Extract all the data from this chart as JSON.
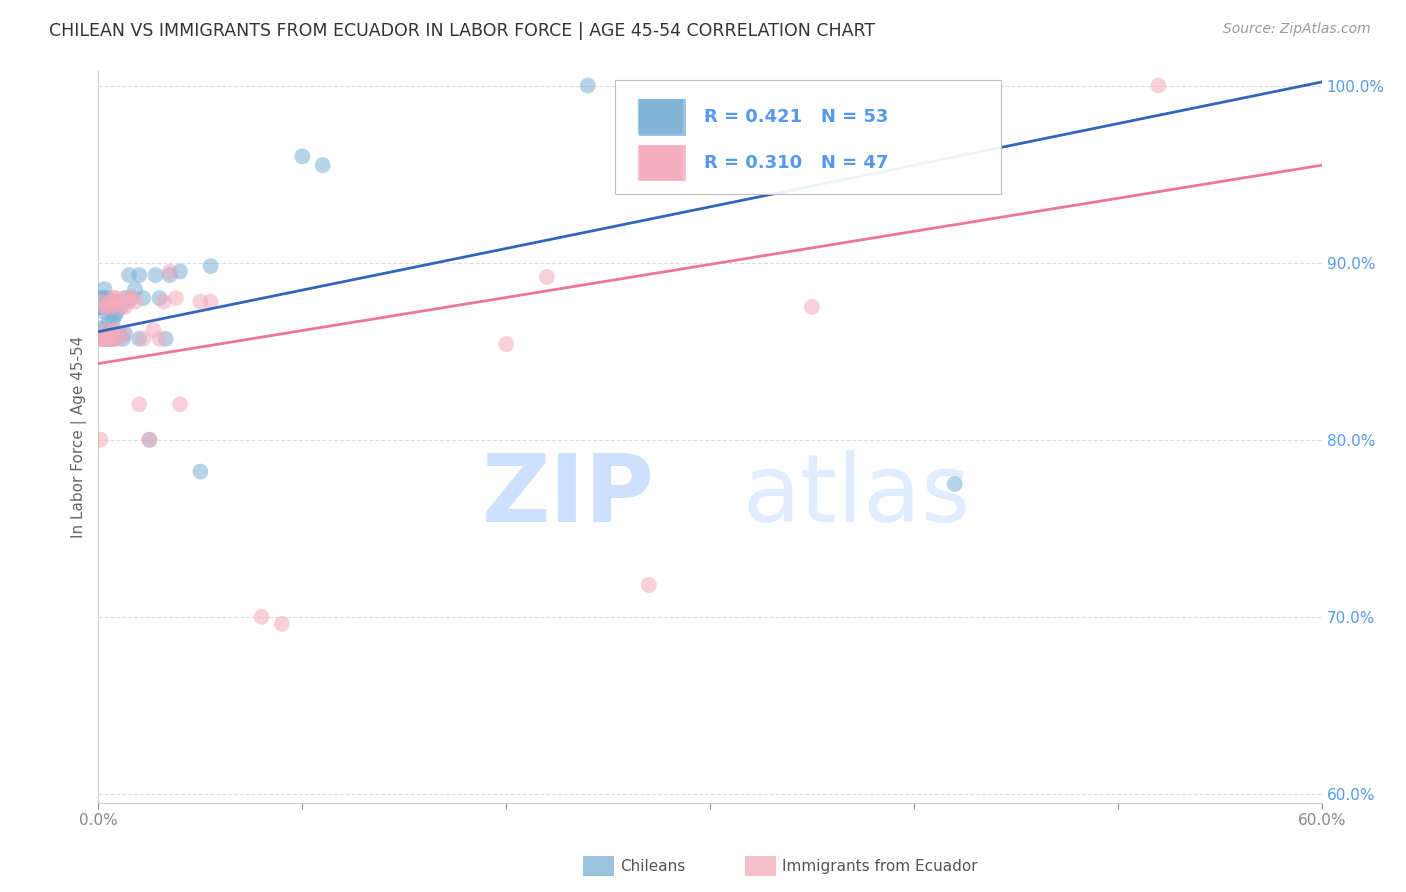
{
  "title": "CHILEAN VS IMMIGRANTS FROM ECUADOR IN LABOR FORCE | AGE 45-54 CORRELATION CHART",
  "source": "Source: ZipAtlas.com",
  "ylabel": "In Labor Force | Age 45-54",
  "blue_color": "#7BAFD4",
  "pink_color": "#F4AABC",
  "blue_line_color": "#3366BB",
  "pink_line_color": "#EE7799",
  "title_color": "#333333",
  "axis_label_color": "#666666",
  "right_tick_color": "#5599EE",
  "xmin": 0.0,
  "xmax": 0.6,
  "ymin": 0.595,
  "ymax": 1.008,
  "yticks": [
    0.6,
    0.7,
    0.8,
    0.9,
    1.0
  ],
  "xticks": [
    0.0,
    0.1,
    0.2,
    0.3,
    0.4,
    0.5,
    0.6
  ],
  "blue_x": [
    0.001,
    0.001,
    0.001,
    0.001,
    0.002,
    0.002,
    0.002,
    0.002,
    0.003,
    0.003,
    0.003,
    0.003,
    0.003,
    0.004,
    0.004,
    0.004,
    0.005,
    0.005,
    0.005,
    0.005,
    0.005,
    0.006,
    0.006,
    0.006,
    0.007,
    0.007,
    0.008,
    0.008,
    0.008,
    0.009,
    0.01,
    0.011,
    0.012,
    0.013,
    0.013,
    0.015,
    0.016,
    0.018,
    0.02,
    0.02,
    0.022,
    0.025,
    0.028,
    0.03,
    0.033,
    0.035,
    0.04,
    0.05,
    0.055,
    0.1,
    0.11,
    0.24,
    0.42
  ],
  "blue_y": [
    0.875,
    0.875,
    0.88,
    0.863,
    0.875,
    0.875,
    0.878,
    0.88,
    0.857,
    0.862,
    0.872,
    0.875,
    0.885,
    0.857,
    0.875,
    0.88,
    0.857,
    0.857,
    0.858,
    0.867,
    0.878,
    0.857,
    0.857,
    0.878,
    0.867,
    0.878,
    0.857,
    0.87,
    0.878,
    0.872,
    0.86,
    0.875,
    0.857,
    0.86,
    0.88,
    0.893,
    0.88,
    0.885,
    0.857,
    0.893,
    0.88,
    0.8,
    0.893,
    0.88,
    0.857,
    0.893,
    0.895,
    0.782,
    0.898,
    0.96,
    0.955,
    1.0,
    0.775
  ],
  "pink_x": [
    0.001,
    0.001,
    0.001,
    0.002,
    0.002,
    0.002,
    0.003,
    0.003,
    0.004,
    0.004,
    0.005,
    0.005,
    0.005,
    0.006,
    0.006,
    0.007,
    0.007,
    0.008,
    0.008,
    0.008,
    0.009,
    0.01,
    0.011,
    0.012,
    0.013,
    0.014,
    0.015,
    0.016,
    0.018,
    0.02,
    0.022,
    0.025,
    0.027,
    0.03,
    0.032,
    0.035,
    0.038,
    0.04,
    0.05,
    0.055,
    0.08,
    0.09,
    0.2,
    0.22,
    0.27,
    0.35,
    0.52
  ],
  "pink_y": [
    0.857,
    0.857,
    0.8,
    0.857,
    0.857,
    0.878,
    0.857,
    0.875,
    0.862,
    0.875,
    0.857,
    0.857,
    0.857,
    0.857,
    0.878,
    0.857,
    0.875,
    0.88,
    0.862,
    0.88,
    0.878,
    0.857,
    0.875,
    0.86,
    0.875,
    0.88,
    0.878,
    0.88,
    0.878,
    0.82,
    0.857,
    0.8,
    0.862,
    0.857,
    0.878,
    0.895,
    0.88,
    0.82,
    0.878,
    0.878,
    0.7,
    0.696,
    0.854,
    0.892,
    0.718,
    0.875,
    1.0
  ],
  "blue_trend_x": [
    0.0,
    0.6
  ],
  "blue_trend_y": [
    0.861,
    1.002
  ],
  "pink_trend_x": [
    0.0,
    0.6
  ],
  "pink_trend_y": [
    0.843,
    0.955
  ],
  "bg_color": "#FFFFFF",
  "grid_color": "#DDDDDD"
}
